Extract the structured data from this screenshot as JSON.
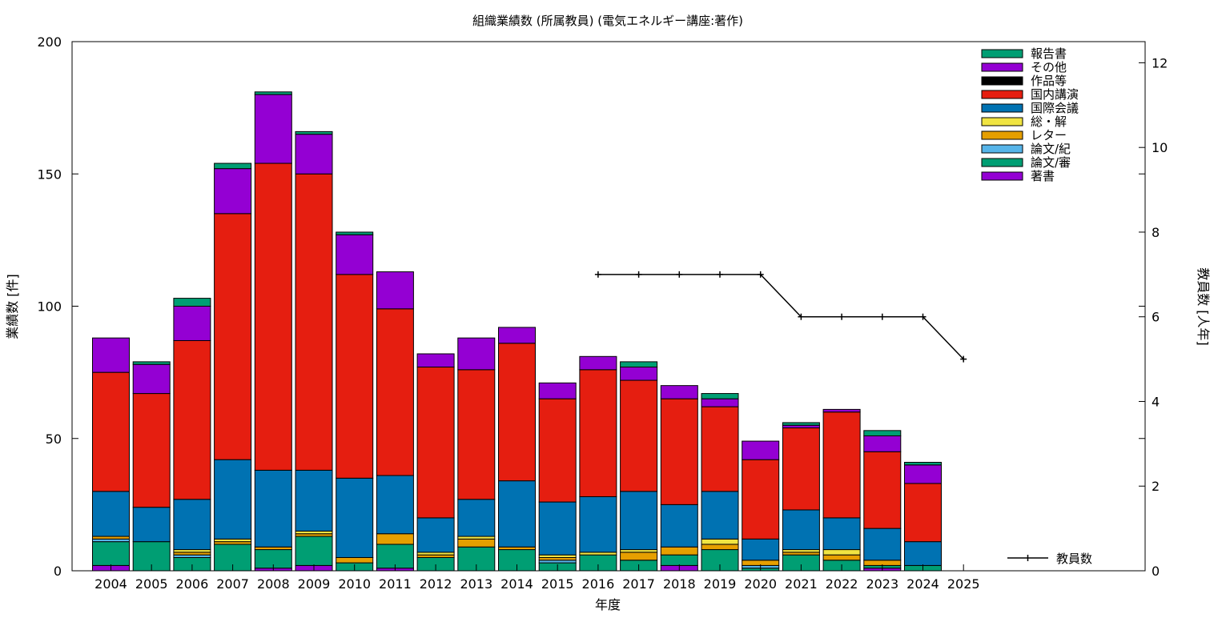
{
  "chart_data": {
    "type": "bar",
    "stacked": true,
    "title": "組織業績数 (所属教員) (電気エネルギー講座:著作)",
    "xlabel": "年度",
    "ylabel": "業績数 [件]",
    "y2label": "教員数 [人年]",
    "ylim": [
      0,
      200
    ],
    "y2lim": [
      0,
      12.5
    ],
    "yticks": [
      0,
      50,
      100,
      150,
      200
    ],
    "y2ticks": [
      0,
      2,
      4,
      6,
      8,
      10,
      12
    ],
    "categories": [
      "2004",
      "2005",
      "2006",
      "2007",
      "2008",
      "2009",
      "2010",
      "2011",
      "2012",
      "2013",
      "2014",
      "2015",
      "2016",
      "2017",
      "2018",
      "2019",
      "2020",
      "2021",
      "2022",
      "2023",
      "2024",
      "2025"
    ],
    "legend_position": "top-right",
    "series": [
      {
        "name": "著書",
        "color": "#9400d3",
        "values": [
          2,
          0,
          0,
          0,
          1,
          2,
          0,
          1,
          0,
          0,
          0,
          0,
          0,
          0,
          2,
          0,
          0,
          0,
          0,
          1,
          0,
          0
        ]
      },
      {
        "name": "論文/審",
        "color": "#009e73",
        "values": [
          9,
          11,
          5,
          10,
          7,
          11,
          3,
          9,
          5,
          9,
          8,
          3,
          6,
          4,
          4,
          8,
          1,
          6,
          4,
          1,
          2,
          0
        ]
      },
      {
        "name": "論文/紀",
        "color": "#56b4e9",
        "values": [
          1,
          0,
          1,
          0,
          0,
          0,
          0,
          0,
          0,
          0,
          0,
          1,
          0,
          0,
          0,
          0,
          1,
          0,
          0,
          0,
          0,
          0
        ]
      },
      {
        "name": "レター",
        "color": "#e69f00",
        "values": [
          1,
          0,
          1,
          1,
          1,
          1,
          2,
          4,
          1,
          3,
          1,
          1,
          0,
          3,
          3,
          2,
          2,
          1,
          2,
          2,
          0,
          0
        ]
      },
      {
        "name": "総・解",
        "color": "#f0e442",
        "values": [
          0,
          0,
          1,
          1,
          0,
          1,
          0,
          0,
          1,
          1,
          0,
          1,
          1,
          1,
          0,
          2,
          0,
          1,
          2,
          0,
          0,
          0
        ]
      },
      {
        "name": "国際会議",
        "color": "#0072b2",
        "values": [
          17,
          13,
          19,
          30,
          29,
          23,
          30,
          22,
          13,
          14,
          25,
          20,
          21,
          22,
          16,
          18,
          8,
          15,
          12,
          12,
          9,
          0
        ]
      },
      {
        "name": "国内講演",
        "color": "#e51e10",
        "values": [
          45,
          43,
          60,
          93,
          116,
          112,
          77,
          63,
          57,
          49,
          52,
          39,
          48,
          42,
          40,
          32,
          30,
          31,
          40,
          29,
          22,
          0
        ]
      },
      {
        "name": "作品等",
        "color": "#000000",
        "values": [
          0,
          0,
          0,
          0,
          0,
          0,
          0,
          0,
          0,
          0,
          0,
          0,
          0,
          0,
          0,
          0,
          0,
          0,
          0,
          0,
          0,
          0
        ]
      },
      {
        "name": "その他",
        "color": "#9400d3",
        "values": [
          13,
          11,
          13,
          17,
          26,
          15,
          15,
          14,
          5,
          12,
          6,
          6,
          5,
          5,
          5,
          3,
          7,
          1,
          1,
          6,
          7,
          0
        ]
      },
      {
        "name": "報告書",
        "color": "#009e73",
        "values": [
          0,
          1,
          3,
          2,
          1,
          1,
          1,
          0,
          0,
          0,
          0,
          0,
          0,
          2,
          0,
          2,
          0,
          1,
          0,
          2,
          1,
          0
        ]
      }
    ],
    "line_series": {
      "name": "教員数",
      "color": "#000000",
      "axis": "y2",
      "x": [
        "2016",
        "2017",
        "2018",
        "2019",
        "2020",
        "2021",
        "2022",
        "2023",
        "2024",
        "2025"
      ],
      "values": [
        7,
        7,
        7,
        7,
        7,
        6,
        6,
        6,
        6,
        5
      ]
    }
  }
}
